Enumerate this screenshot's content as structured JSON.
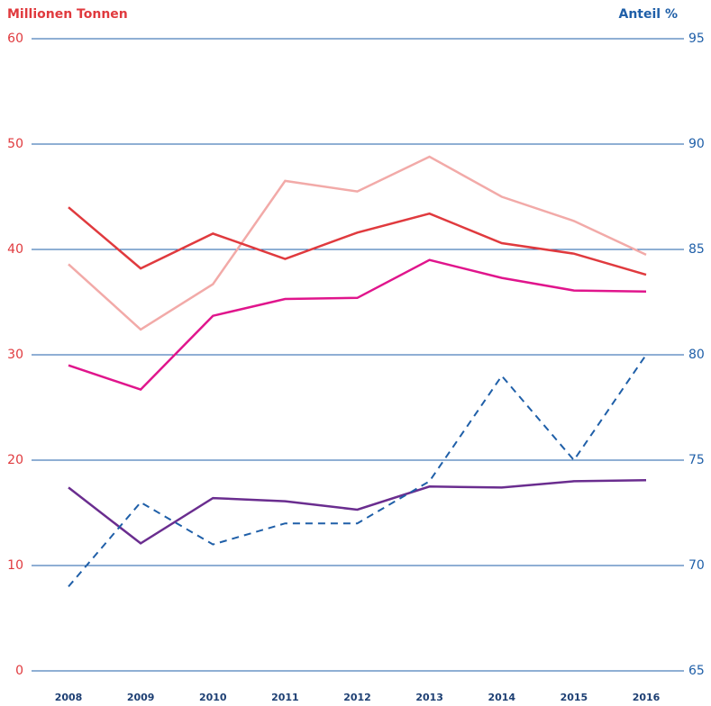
{
  "chart_data": {
    "type": "line",
    "y_label": "Millionen Tonnen",
    "y2_label": "Anteil %",
    "categories": [
      "2008",
      "2009",
      "2010",
      "2011",
      "2012",
      "2013",
      "2014",
      "2015",
      "2016"
    ],
    "ylim": [
      0,
      60
    ],
    "yticks": [
      0,
      10,
      20,
      30,
      40,
      50,
      60
    ],
    "y2lim": [
      65,
      95
    ],
    "y2ticks": [
      65,
      70,
      75,
      80,
      85,
      90,
      95
    ],
    "grid": true,
    "grid_color": "#1f5fa8",
    "series": [
      {
        "color": "#f2aaa8",
        "values": [
          38.6,
          32.4,
          36.7,
          46.5,
          45.5,
          48.8,
          45.0,
          42.7,
          39.5
        ]
      },
      {
        "color": "#e03a3e",
        "values": [
          44.0,
          38.2,
          41.5,
          39.1,
          41.6,
          43.4,
          40.6,
          39.6,
          37.6
        ]
      },
      {
        "color": "#e0158c",
        "values": [
          29.0,
          26.7,
          33.7,
          35.3,
          35.4,
          39.0,
          37.3,
          36.1,
          36.0
        ]
      },
      {
        "color": "#6a2d8f",
        "values": [
          17.4,
          12.1,
          16.4,
          16.1,
          15.3,
          17.5,
          17.4,
          18.0,
          18.1
        ]
      },
      {
        "color": "#1f5fa8",
        "dashed": true,
        "axis": "y2",
        "values": [
          69,
          73,
          71,
          72,
          72,
          74,
          79,
          75,
          80
        ]
      }
    ]
  }
}
